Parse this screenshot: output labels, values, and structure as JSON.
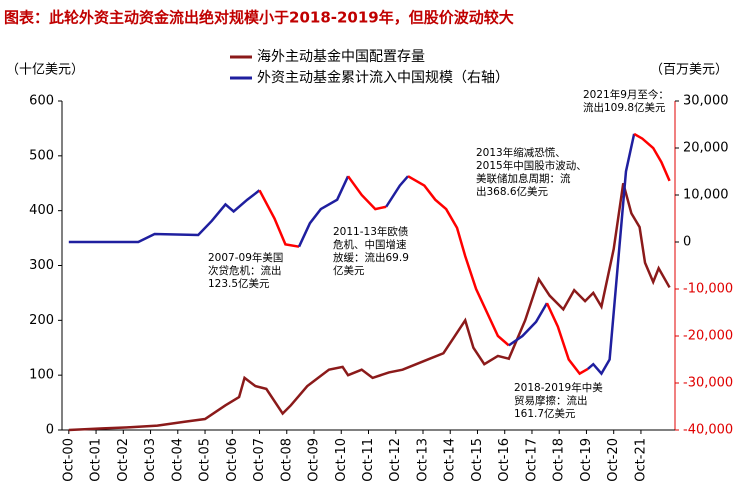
{
  "chart_data": {
    "type": "line",
    "title": "图表：此轮外资主动资金流出绝对规模小于2018-2019年，但股价波动较大",
    "ylabel": "（十亿美元）",
    "y2label": "（百万美元）",
    "xlim": [
      2000.5,
      2023.0
    ],
    "xticks": [
      {
        "value": 2000.75,
        "label": "Oct-00"
      },
      {
        "value": 2001.75,
        "label": "Oct-01"
      },
      {
        "value": 2002.75,
        "label": "Oct-02"
      },
      {
        "value": 2003.75,
        "label": "Oct-03"
      },
      {
        "value": 2004.75,
        "label": "Oct-04"
      },
      {
        "value": 2005.75,
        "label": "Oct-05"
      },
      {
        "value": 2006.75,
        "label": "Oct-06"
      },
      {
        "value": 2007.75,
        "label": "Oct-07"
      },
      {
        "value": 2008.75,
        "label": "Oct-08"
      },
      {
        "value": 2009.75,
        "label": "Oct-09"
      },
      {
        "value": 2010.75,
        "label": "Oct-10"
      },
      {
        "value": 2011.75,
        "label": "Oct-11"
      },
      {
        "value": 2012.75,
        "label": "Oct-12"
      },
      {
        "value": 2013.75,
        "label": "Oct-13"
      },
      {
        "value": 2014.75,
        "label": "Oct-14"
      },
      {
        "value": 2015.75,
        "label": "Oct-15"
      },
      {
        "value": 2016.75,
        "label": "Oct-16"
      },
      {
        "value": 2017.75,
        "label": "Oct-17"
      },
      {
        "value": 2018.75,
        "label": "Oct-18"
      },
      {
        "value": 2019.75,
        "label": "Oct-19"
      },
      {
        "value": 2020.75,
        "label": "Oct-20"
      },
      {
        "value": 2021.75,
        "label": "Oct-21"
      }
    ],
    "ylim": [
      0,
      600
    ],
    "yticks": [
      0,
      100,
      200,
      300,
      400,
      500,
      600
    ],
    "y2lim": [
      -40000,
      30000
    ],
    "y2ticks": [
      {
        "value": -40000,
        "label": "-40,000"
      },
      {
        "value": -30000,
        "label": "-30,000"
      },
      {
        "value": -20000,
        "label": "-20,000"
      },
      {
        "value": -10000,
        "label": "-10,000"
      },
      0,
      {
        "value": 10000,
        "label": "10,000"
      },
      {
        "value": 20000,
        "label": "20,000"
      },
      {
        "value": 30000,
        "label": "30,000"
      }
    ],
    "y2_negative_color": "#e00000",
    "highlight_color": "#ff0000",
    "highlight_ranges": [
      [
        2007.75,
        2009.2
      ],
      [
        2011.0,
        2012.4
      ],
      [
        2013.2,
        2016.9
      ],
      [
        2018.3,
        2019.8
      ],
      [
        2021.5,
        2022.8
      ]
    ],
    "series": [
      {
        "name": "海外主动基金中国配置存量",
        "color": "#8b1a1a",
        "axis": "y",
        "x": [
          2000.75,
          2002.0,
          2003.0,
          2004.0,
          2005.0,
          2005.75,
          2006.5,
          2007.0,
          2007.2,
          2007.6,
          2008.0,
          2008.6,
          2008.9,
          2009.5,
          2009.9,
          2010.3,
          2010.8,
          2011.0,
          2011.5,
          2011.9,
          2012.5,
          2013.0,
          2013.5,
          2014.0,
          2014.5,
          2014.9,
          2015.3,
          2015.6,
          2016.0,
          2016.5,
          2016.9,
          2017.5,
          2018.0,
          2018.4,
          2018.9,
          2019.3,
          2019.7,
          2020.0,
          2020.3,
          2020.75,
          2021.1,
          2021.4,
          2021.7,
          2021.9,
          2022.2,
          2022.4,
          2022.8
        ],
        "values": [
          0,
          3,
          5,
          8,
          15,
          20,
          45,
          60,
          95,
          80,
          75,
          30,
          45,
          80,
          95,
          110,
          115,
          100,
          110,
          95,
          105,
          110,
          120,
          130,
          140,
          170,
          200,
          150,
          120,
          135,
          130,
          200,
          275,
          245,
          220,
          255,
          235,
          250,
          225,
          330,
          450,
          395,
          370,
          305,
          270,
          295,
          260
        ]
      },
      {
        "name": "外资主动基金累计流入中国规模（右轴）",
        "color": "#1f1f9f",
        "axis": "y2",
        "x": [
          2000.75,
          2003.3,
          2003.9,
          2005.5,
          2006.0,
          2006.5,
          2006.8,
          2007.3,
          2007.75,
          2008.3,
          2008.7,
          2009.2,
          2009.6,
          2010.0,
          2010.6,
          2011.0,
          2011.5,
          2012.0,
          2012.4,
          2012.9,
          2013.2,
          2013.8,
          2014.2,
          2014.6,
          2015.0,
          2015.3,
          2015.7,
          2016.1,
          2016.5,
          2016.9,
          2017.4,
          2017.9,
          2018.3,
          2018.7,
          2019.1,
          2019.5,
          2019.8,
          2020.0,
          2020.3,
          2020.6,
          2020.9,
          2021.2,
          2021.5,
          2021.8,
          2022.2,
          2022.5,
          2022.8
        ],
        "values": [
          0,
          0,
          1700,
          1500,
          4500,
          8000,
          6500,
          9000,
          11000,
          5000,
          -500,
          -1000,
          4000,
          7000,
          9000,
          14000,
          10000,
          7000,
          7500,
          12000,
          14000,
          12000,
          9000,
          7000,
          3000,
          -3000,
          -10000,
          -15000,
          -20000,
          -22000,
          -20000,
          -17000,
          -13000,
          -18000,
          -25000,
          -28000,
          -27000,
          -26000,
          -28000,
          -25000,
          -5000,
          15000,
          23000,
          22000,
          20000,
          17000,
          13000
        ]
      }
    ],
    "annotations": [
      {
        "lines": [
          "2007-09年美国",
          "次贷危机：流出",
          "123.5亿美元"
        ]
      },
      {
        "lines": [
          "2011-13年欧债",
          "危机、中国增速",
          "放缓：流出69.9",
          "亿美元"
        ]
      },
      {
        "lines": [
          "2013年缩减恐慌、",
          "2015年中国股市波动、",
          "美联储加息周期：流",
          "出368.6亿美元"
        ]
      },
      {
        "lines": [
          "2018-2019年中美",
          "贸易摩擦：流出",
          "161.7亿美元"
        ]
      },
      {
        "lines": [
          "2021年9月至今：",
          "流出109.8亿美元"
        ]
      }
    ]
  }
}
